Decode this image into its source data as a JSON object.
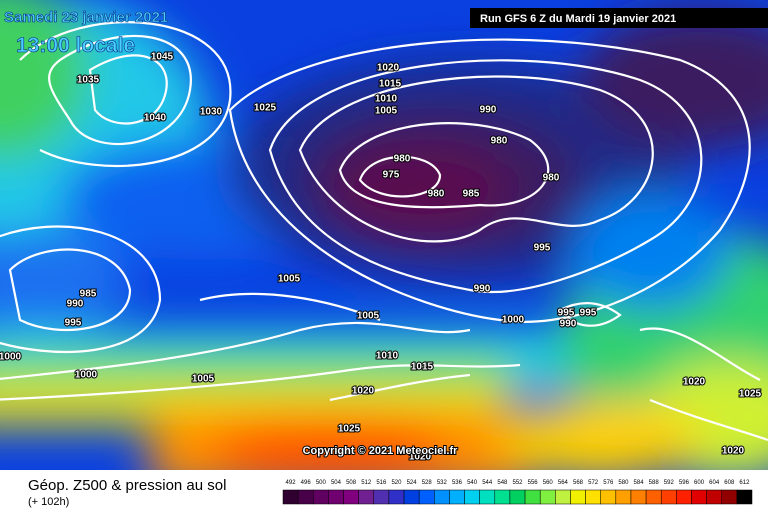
{
  "header": {
    "date": "Samedi 23 janvier 2021",
    "time": "13:00 locale",
    "run": "Run GFS 6 Z du Mardi 19 janvier 2021"
  },
  "isobar_labels": [
    "1045",
    "1035",
    "1040",
    "1030",
    "1025",
    "1020",
    "1015",
    "1010",
    "1005",
    "990",
    "980",
    "980",
    "975",
    "980",
    "985",
    "980",
    "995",
    "990",
    "1000",
    "995",
    "995",
    "990",
    "985",
    "990",
    "995",
    "1005",
    "1005",
    "1000",
    "1000",
    "1005",
    "1010",
    "1015",
    "1020",
    "1020",
    "1025",
    "1025",
    "1020",
    "1020"
  ],
  "copyright": "Copyright © 2021 Meteociel.fr",
  "footer": {
    "title": "Géop. Z500 & pression au sol",
    "lead": "(+ 102h)"
  },
  "scale": {
    "labels": [
      492,
      496,
      500,
      504,
      508,
      512,
      516,
      520,
      524,
      528,
      532,
      536,
      540,
      544,
      548,
      552,
      556,
      560,
      564,
      568,
      572,
      576,
      580,
      584,
      588,
      592,
      596,
      600,
      604,
      608,
      612
    ],
    "colors": [
      "#300030",
      "#480048",
      "#600060",
      "#700070",
      "#800080",
      "#702090",
      "#5030b0",
      "#3030c8",
      "#0040e0",
      "#0060ff",
      "#0090ff",
      "#00b0ff",
      "#00d0f0",
      "#00e0c0",
      "#00e090",
      "#00d060",
      "#40e040",
      "#80f040",
      "#c0f040",
      "#f0f000",
      "#ffe000",
      "#ffc000",
      "#ffa000",
      "#ff8000",
      "#ff6000",
      "#ff4000",
      "#ff2000",
      "#e00000",
      "#c00000",
      "#900000",
      "#000000"
    ]
  }
}
